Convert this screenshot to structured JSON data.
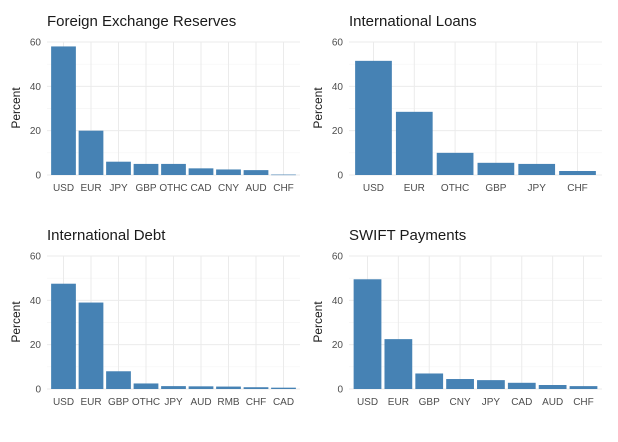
{
  "chart_data": [
    {
      "type": "bar",
      "title": "Foreign Exchange Reserves",
      "xlabel": "",
      "ylabel": "Percent",
      "ylim": [
        0,
        60
      ],
      "yticks": [
        0,
        20,
        40,
        60
      ],
      "grid": true,
      "color": "#4682B4",
      "categories": [
        "USD",
        "EUR",
        "JPY",
        "GBP",
        "OTHC",
        "CAD",
        "CNY",
        "AUD",
        "CHF"
      ],
      "values": [
        58,
        20,
        6,
        5,
        5,
        3,
        2.5,
        2.2,
        0.2
      ]
    },
    {
      "type": "bar",
      "title": "International Loans",
      "xlabel": "",
      "ylabel": "Percent",
      "ylim": [
        0,
        60
      ],
      "yticks": [
        0,
        20,
        40,
        60
      ],
      "grid": true,
      "color": "#4682B4",
      "categories": [
        "USD",
        "EUR",
        "OTHC",
        "GBP",
        "JPY",
        "CHF"
      ],
      "values": [
        51.5,
        28.5,
        10,
        5.5,
        5,
        1.8
      ]
    },
    {
      "type": "bar",
      "title": "International Debt",
      "xlabel": "",
      "ylabel": "Percent",
      "ylim": [
        0,
        60
      ],
      "yticks": [
        0,
        20,
        40,
        60
      ],
      "grid": true,
      "color": "#4682B4",
      "categories": [
        "USD",
        "EUR",
        "GBP",
        "OTHC",
        "JPY",
        "AUD",
        "RMB",
        "CHF",
        "CAD"
      ],
      "values": [
        47.5,
        39,
        8,
        2.5,
        1.3,
        1.2,
        1.1,
        0.8,
        0.6
      ]
    },
    {
      "type": "bar",
      "title": "SWIFT Payments",
      "xlabel": "",
      "ylabel": "Percent",
      "ylim": [
        0,
        60
      ],
      "yticks": [
        0,
        20,
        40,
        60
      ],
      "grid": true,
      "color": "#4682B4",
      "categories": [
        "USD",
        "EUR",
        "GBP",
        "CNY",
        "JPY",
        "CAD",
        "AUD",
        "CHF"
      ],
      "values": [
        49.5,
        22.5,
        7,
        4.5,
        4,
        2.8,
        1.8,
        1.3
      ]
    }
  ]
}
